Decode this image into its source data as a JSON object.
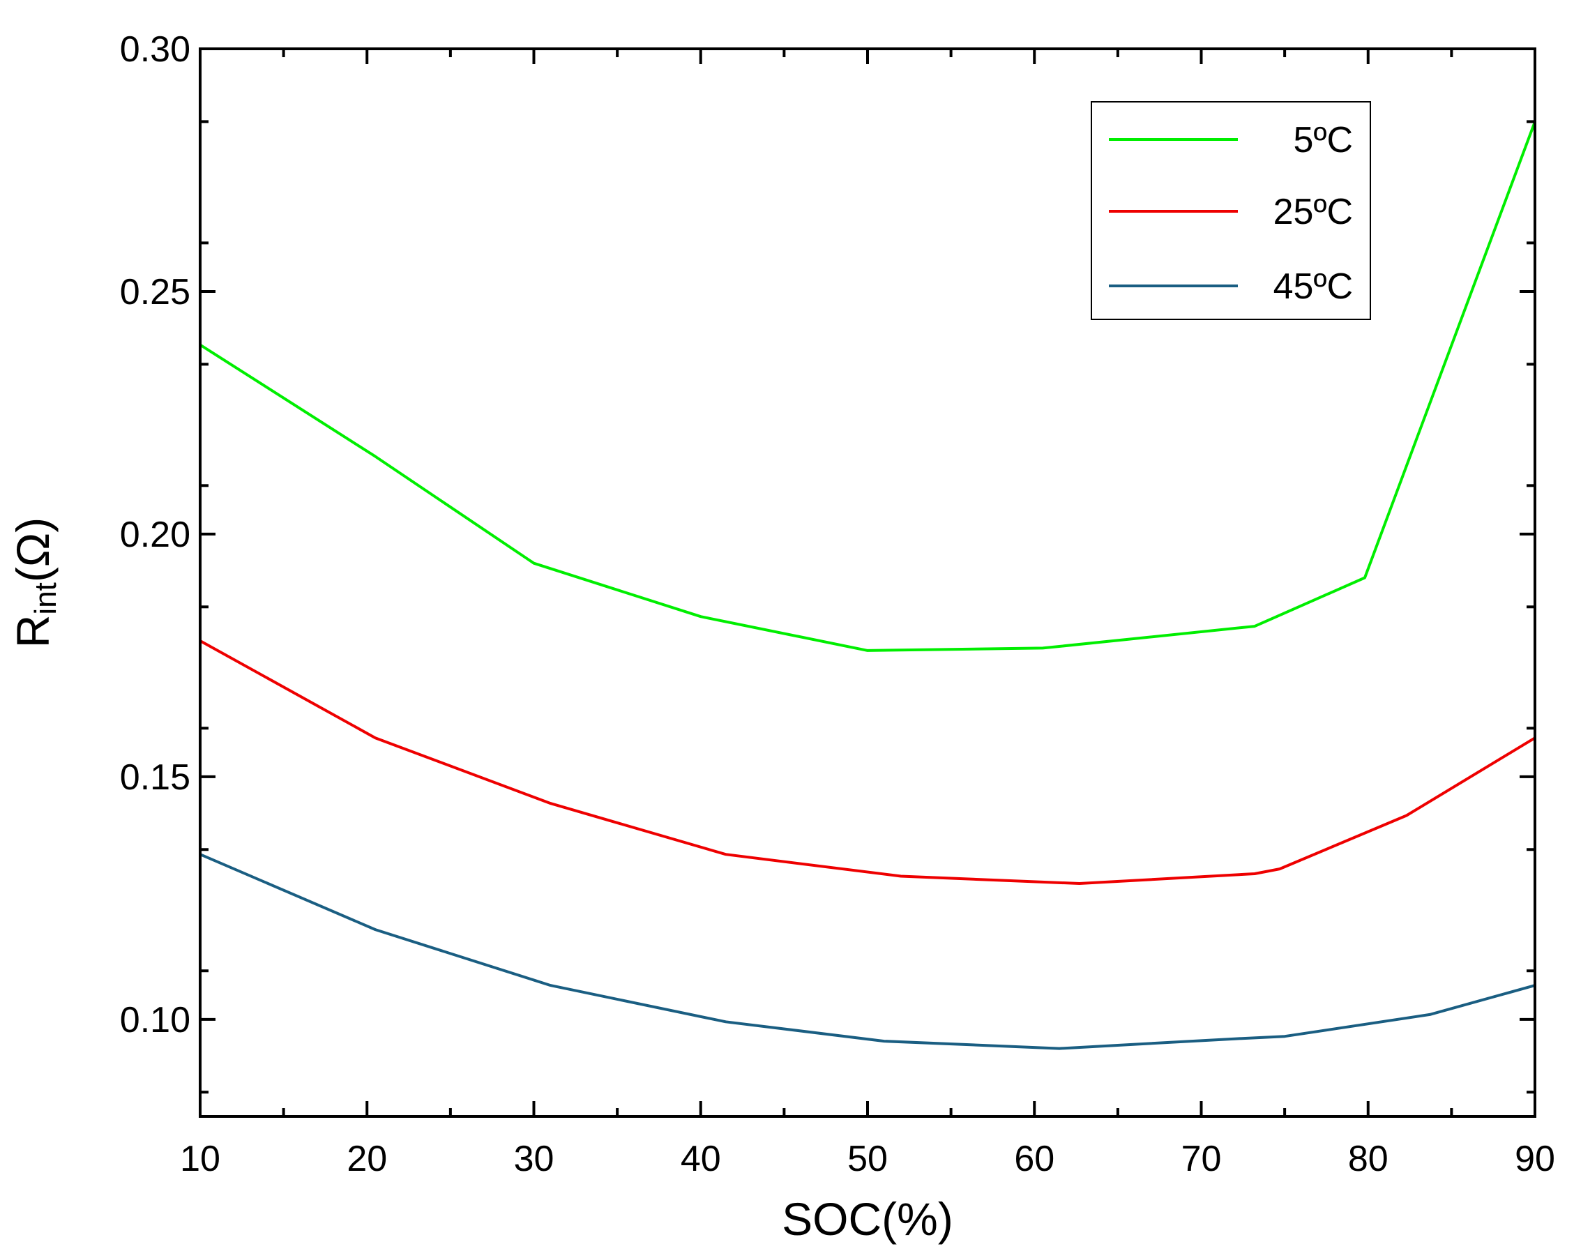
{
  "chart_data": {
    "type": "line",
    "title": "",
    "xlabel": "SOC(%)",
    "ylabel": {
      "main": "R",
      "subscript": "int",
      "suffix": "(Ω)"
    },
    "xlim": [
      10,
      90
    ],
    "ylim": [
      0.08,
      0.3
    ],
    "x_ticks": [
      10,
      20,
      30,
      40,
      50,
      60,
      70,
      80,
      90
    ],
    "x_tick_labels": [
      "10",
      "20",
      "30",
      "40",
      "50",
      "60",
      "70",
      "80",
      "90"
    ],
    "y_ticks": [
      0.1,
      0.15,
      0.2,
      0.25,
      0.3
    ],
    "y_tick_labels": [
      "0.10",
      "0.15",
      "0.20",
      "0.25",
      "0.30"
    ],
    "grid": false,
    "legend_position": "top-right",
    "series": [
      {
        "name": "5ºC",
        "color": "#00ee00",
        "points": [
          [
            10,
            0.239
          ],
          [
            20.5,
            0.216
          ],
          [
            30,
            0.194
          ],
          [
            40,
            0.183
          ],
          [
            50,
            0.176
          ],
          [
            60.5,
            0.1765
          ],
          [
            73.2,
            0.181
          ],
          [
            79.8,
            0.191
          ],
          [
            90,
            0.285
          ]
        ]
      },
      {
        "name": "25ºC",
        "color": "#ee0000",
        "points": [
          [
            10,
            0.178
          ],
          [
            20.5,
            0.158
          ],
          [
            31,
            0.1445
          ],
          [
            41.5,
            0.134
          ],
          [
            52,
            0.1295
          ],
          [
            62.7,
            0.128
          ],
          [
            73.2,
            0.13
          ],
          [
            74.7,
            0.131
          ],
          [
            82.3,
            0.142
          ],
          [
            90,
            0.158
          ]
        ]
      },
      {
        "name": "45ºC",
        "color": "#1a5e82",
        "points": [
          [
            10,
            0.134
          ],
          [
            20.5,
            0.1185
          ],
          [
            31,
            0.107
          ],
          [
            41.5,
            0.0995
          ],
          [
            51,
            0.0955
          ],
          [
            61.5,
            0.094
          ],
          [
            72,
            0.096
          ],
          [
            75,
            0.0965
          ],
          [
            83.7,
            0.101
          ],
          [
            90,
            0.107
          ]
        ]
      }
    ]
  }
}
